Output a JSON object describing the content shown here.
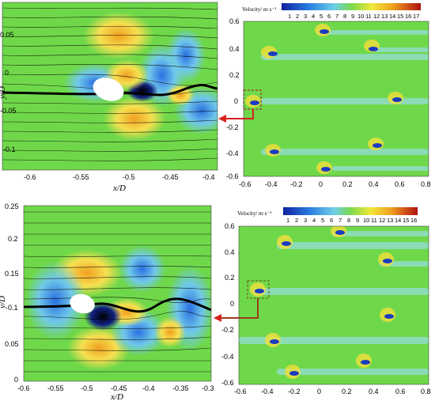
{
  "panels": {
    "a": {
      "xlabel": "x/D",
      "ylabel": "y/D",
      "xticks": [
        "-0.6",
        "-0.55",
        "-0.5",
        "-0.45",
        "-0.4"
      ],
      "yticks": [
        "0.05",
        "0",
        "-0.05",
        "-0.1"
      ]
    },
    "b": {
      "xticks": [
        "-0.6",
        "-0.4",
        "-0.2",
        "0",
        "0.2",
        "0.4",
        "0.6",
        "0.8"
      ],
      "yticks": [
        "0.6",
        "0.4",
        "0.2",
        "0",
        "-0.2",
        "-0.4",
        "-0.6"
      ],
      "colorbar_title": "Velocity/ m·s⁻¹",
      "colorbar_labels": [
        "1",
        "2",
        "3",
        "4",
        "5",
        "6",
        "7",
        "8",
        "9",
        "10",
        "11",
        "12",
        "13",
        "14",
        "15",
        "16",
        "17"
      ]
    },
    "c": {
      "xlabel": "x/D",
      "ylabel": "y/D",
      "xticks": [
        "-0.6",
        "-0.55",
        "-0.5",
        "-0.45",
        "-0.4",
        "-0.35",
        "-0.3"
      ],
      "yticks": [
        "0.25",
        "0.2",
        "0.15",
        "0.1",
        "0.05",
        "0"
      ]
    },
    "d": {
      "xticks": [
        "-0.6",
        "-0.4",
        "-0.2",
        "0",
        "0.2",
        "0.4",
        "0.6",
        "0.8"
      ],
      "yticks": [
        "0.6",
        "0.4",
        "0.2",
        "0",
        "-0.2",
        "-0.4",
        "-0.6"
      ],
      "colorbar_title": "Velocity/ m·s⁻¹",
      "colorbar_labels": [
        "1",
        "2",
        "3",
        "4",
        "5",
        "6",
        "7",
        "8",
        "9",
        "10",
        "11",
        "12",
        "13",
        "14",
        "15",
        "16"
      ]
    }
  },
  "colors": {
    "background_flow": "#6fd84a",
    "arrow": "#d92020",
    "arrow_brown": "#9b3a1a"
  }
}
